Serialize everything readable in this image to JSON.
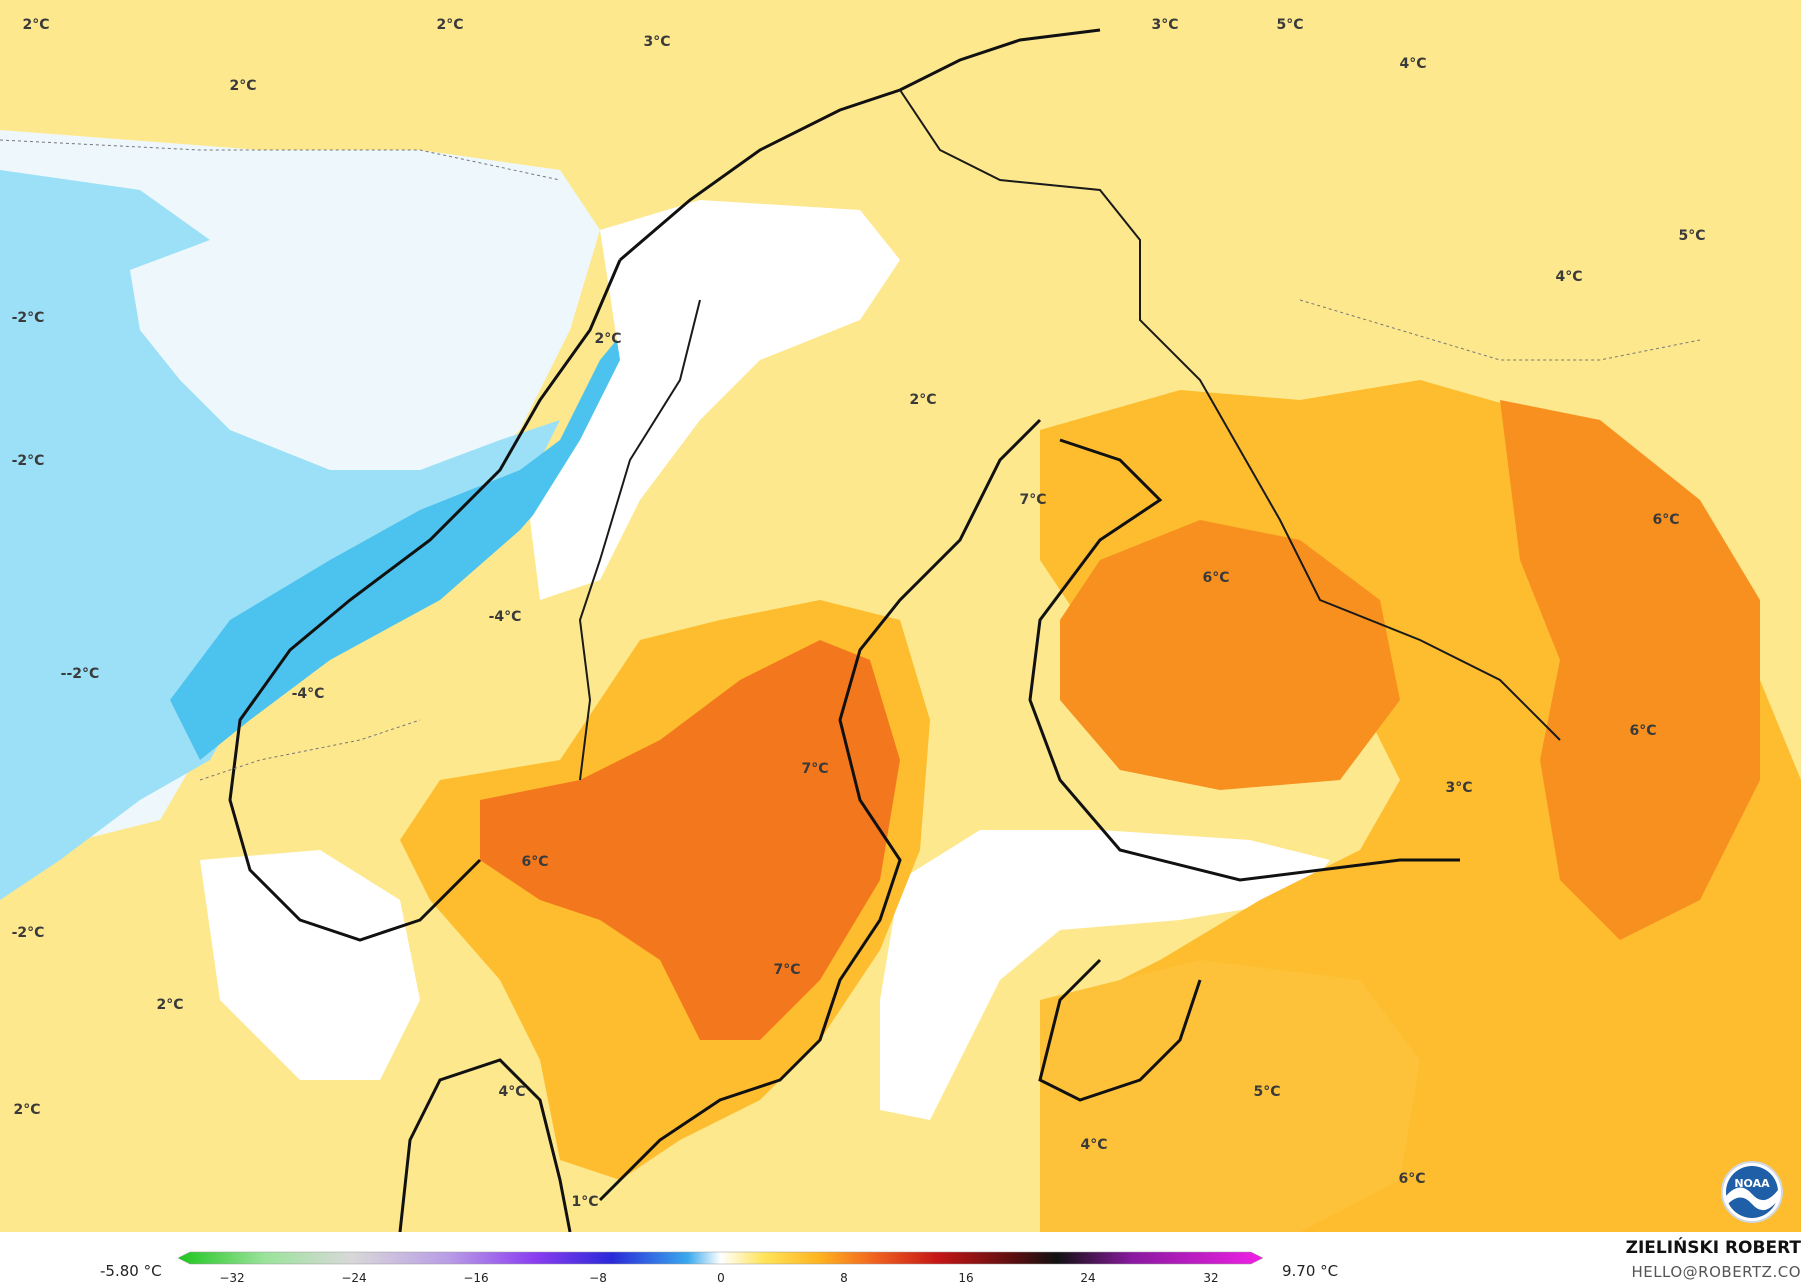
{
  "map": {
    "temperature_labels": [
      "2°C",
      "2°C",
      "3°C",
      "2°C",
      "3°C",
      "5°C",
      "4°C",
      "5°C",
      "4°C",
      "-2°C",
      "-2°C",
      "--2°C",
      "-2°C",
      "2°C",
      "2°C",
      "2°C",
      "2°C",
      "7°C",
      "6°C",
      "6°C",
      "6°C",
      "3°C",
      "-4°C",
      "-4°C",
      "7°C",
      "6°C",
      "7°C",
      "4°C",
      "1°C",
      "5°C",
      "4°C",
      "6°C"
    ]
  },
  "legend": {
    "min_label": "-5.80 °C",
    "max_label": "9.70 °C",
    "ticks": [
      "−32",
      "−24",
      "−16",
      "−8",
      "0",
      "8",
      "16",
      "24",
      "32"
    ]
  },
  "credits": {
    "author": "ZIELIŃSKI ROBERT",
    "email": "HELLO@ROBERTZ.CO"
  },
  "logo": {
    "text": "NOAA",
    "icon": "noaa-logo-icon"
  },
  "colors": {
    "sea_cold": "#7fd3f0",
    "sea_cool": "#e4f5fc",
    "land_warm": "#fdb72b",
    "land_hot": "#f2731c",
    "land_mild": "#fde88d",
    "coastline": "#111111"
  }
}
